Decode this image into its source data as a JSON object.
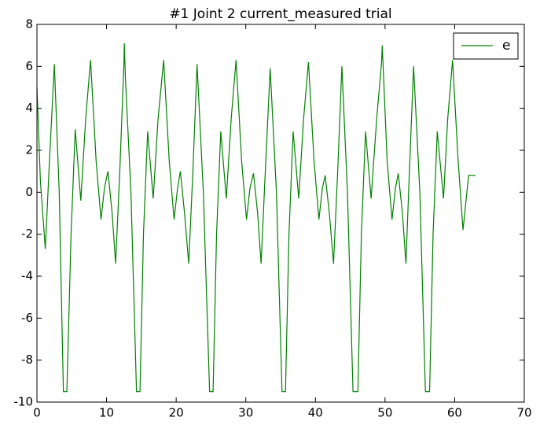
{
  "chart_data": {
    "type": "line",
    "title": "#1 Joint 2 current_measured trial",
    "x": [
      0,
      0.5,
      1.2,
      1.8,
      2.5,
      3.2,
      3.8,
      4.3,
      4.9,
      5.5,
      6.3,
      7.0,
      7.7,
      8.5,
      9.2,
      9.7,
      10.2,
      10.8,
      11.3,
      11.9,
      12.5,
      12.55,
      12.7,
      13.5,
      14.3,
      14.8,
      15.3,
      15.9,
      16.7,
      17.4,
      18.2,
      19.0,
      19.7,
      20.2,
      20.6,
      21.2,
      21.8,
      22.4,
      23.0,
      23.9,
      24.8,
      25.3,
      25.8,
      26.4,
      27.2,
      27.9,
      28.6,
      29.4,
      30.1,
      30.6,
      31.1,
      31.7,
      32.2,
      32.8,
      33.5,
      34.4,
      35.2,
      35.7,
      36.2,
      36.8,
      37.6,
      38.3,
      39.0,
      39.8,
      40.5,
      41.0,
      41.4,
      42.0,
      42.6,
      43.2,
      43.8,
      44.6,
      45.4,
      46.1,
      46.6,
      47.2,
      48.0,
      48.8,
      49.5,
      49.6,
      50.3,
      51.0,
      51.5,
      51.9,
      52.5,
      53.0,
      53.5,
      54.1,
      55.0,
      55.8,
      56.4,
      56.9,
      57.5,
      58.4,
      59.0,
      59.7,
      60.5,
      61.2,
      61.6,
      62.0,
      63.0
    ],
    "series": [
      {
        "name": "e",
        "color": "#008000",
        "values": [
          5.0,
          0.5,
          -2.7,
          1.5,
          6.1,
          0.0,
          -9.5,
          -9.5,
          -2.0,
          3.0,
          -0.4,
          3.5,
          6.3,
          1.5,
          -1.3,
          0.2,
          1.0,
          -1.0,
          -3.4,
          1.0,
          6.2,
          7.1,
          5.5,
          0.0,
          -9.5,
          -9.5,
          -2.0,
          2.9,
          -0.3,
          3.5,
          6.3,
          1.5,
          -1.3,
          0.2,
          1.0,
          -1.0,
          -3.4,
          1.0,
          6.1,
          0.0,
          -9.5,
          -9.5,
          -2.0,
          2.9,
          -0.3,
          3.5,
          6.3,
          1.5,
          -1.3,
          0.2,
          0.9,
          -1.0,
          -3.4,
          1.0,
          5.9,
          0.0,
          -9.5,
          -9.5,
          -2.0,
          2.9,
          -0.3,
          3.5,
          6.2,
          1.5,
          -1.3,
          0.2,
          0.8,
          -1.0,
          -3.4,
          1.0,
          6.0,
          0.0,
          -9.5,
          -9.5,
          -2.0,
          2.9,
          -0.3,
          3.5,
          6.2,
          7.0,
          1.5,
          -1.3,
          0.2,
          0.9,
          -1.0,
          -3.4,
          1.0,
          6.0,
          0.0,
          -9.5,
          -9.5,
          -2.0,
          2.9,
          -0.3,
          3.5,
          6.3,
          1.5,
          -1.8,
          -0.5,
          0.8,
          0.8
        ]
      }
    ],
    "xlim": [
      0,
      70
    ],
    "xticks": [
      0,
      10,
      20,
      30,
      40,
      50,
      60,
      70
    ],
    "ylim": [
      -10,
      8
    ],
    "yticks": [
      -10,
      -8,
      -6,
      -4,
      -2,
      0,
      2,
      4,
      6,
      8
    ],
    "legend": "upper right"
  }
}
